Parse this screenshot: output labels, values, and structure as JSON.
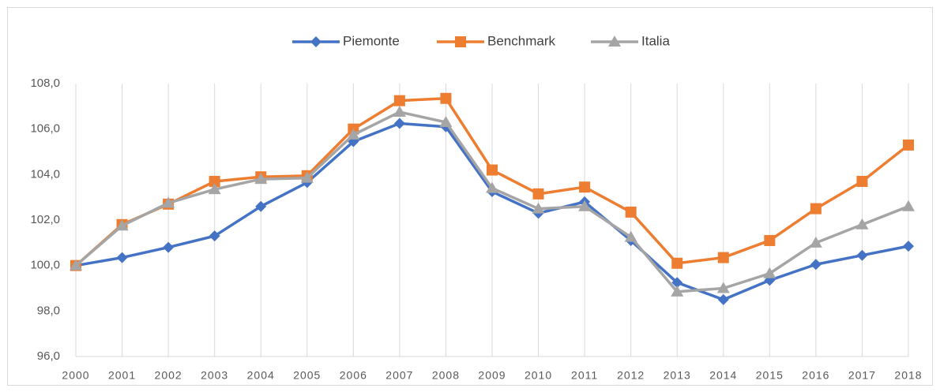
{
  "chart_data": {
    "type": "line",
    "categories": [
      "2000",
      "2001",
      "2002",
      "2003",
      "2004",
      "2005",
      "2006",
      "2007",
      "2008",
      "2009",
      "2010",
      "2011",
      "2012",
      "2013",
      "2014",
      "2015",
      "2016",
      "2017",
      "2018"
    ],
    "series": [
      {
        "name": "Piemonte",
        "color": "#4472c4",
        "marker": "diamond",
        "values": [
          100,
          100.35,
          100.8,
          101.3,
          102.6,
          103.65,
          105.45,
          106.25,
          106.1,
          103.25,
          102.3,
          102.8,
          101.1,
          99.25,
          98.5,
          99.35,
          100.05,
          100.45,
          100.85
        ]
      },
      {
        "name": "Benchmark",
        "color": "#ed7d31",
        "marker": "square",
        "values": [
          100,
          101.8,
          102.7,
          103.7,
          103.9,
          103.95,
          106.0,
          107.25,
          107.35,
          104.2,
          103.15,
          103.45,
          102.35,
          100.1,
          100.35,
          101.1,
          102.5,
          103.7,
          105.3
        ]
      },
      {
        "name": "Italia",
        "color": "#a5a5a5",
        "marker": "triangle",
        "values": [
          100,
          101.75,
          102.75,
          103.35,
          103.8,
          103.85,
          105.75,
          106.75,
          106.3,
          103.4,
          102.5,
          102.6,
          101.25,
          98.85,
          99.0,
          99.65,
          101.0,
          101.8,
          102.6
        ]
      }
    ],
    "ylim": [
      96,
      108
    ],
    "yticks": [
      {
        "value": 96,
        "label": "96,0"
      },
      {
        "value": 98,
        "label": "98,0"
      },
      {
        "value": 100,
        "label": "100,0"
      },
      {
        "value": 102,
        "label": "102,0"
      },
      {
        "value": 104,
        "label": "104,0"
      },
      {
        "value": 106,
        "label": "106,0"
      },
      {
        "value": 108,
        "label": "108,0"
      }
    ],
    "grid": "x",
    "legend": "top"
  }
}
